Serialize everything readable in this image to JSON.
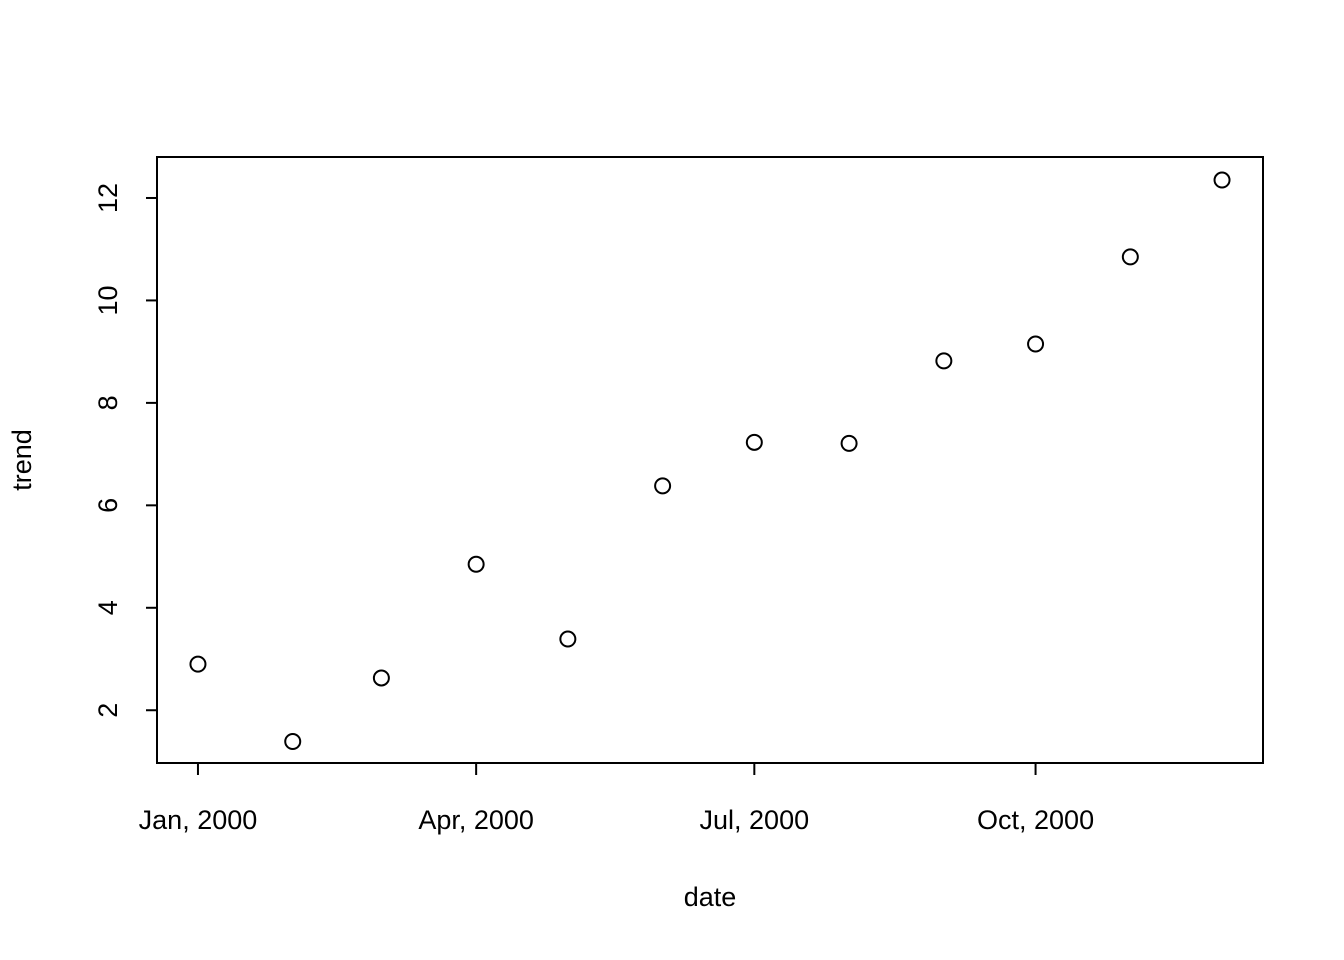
{
  "chart_data": {
    "type": "scatter",
    "x": [
      "2000-01",
      "2000-02",
      "2000-03",
      "2000-04",
      "2000-05",
      "2000-06",
      "2000-07",
      "2000-08",
      "2000-09",
      "2000-10",
      "2000-11",
      "2000-12"
    ],
    "values": [
      2.9,
      1.39,
      2.63,
      4.85,
      3.39,
      6.38,
      7.23,
      7.21,
      8.82,
      9.15,
      10.85,
      12.35
    ],
    "color": "#000000",
    "xlabel": "date",
    "ylabel": "trend",
    "xticks": [
      {
        "value": "2000-01",
        "label": "Jan, 2000"
      },
      {
        "value": "2000-04",
        "label": "Apr, 2000"
      },
      {
        "value": "2000-07",
        "label": "Jul, 2000"
      },
      {
        "value": "2000-10",
        "label": "Oct, 2000"
      }
    ],
    "ylim": [
      0.97,
      12.8
    ],
    "yticks": [
      2,
      4,
      6,
      8,
      10,
      12
    ]
  }
}
